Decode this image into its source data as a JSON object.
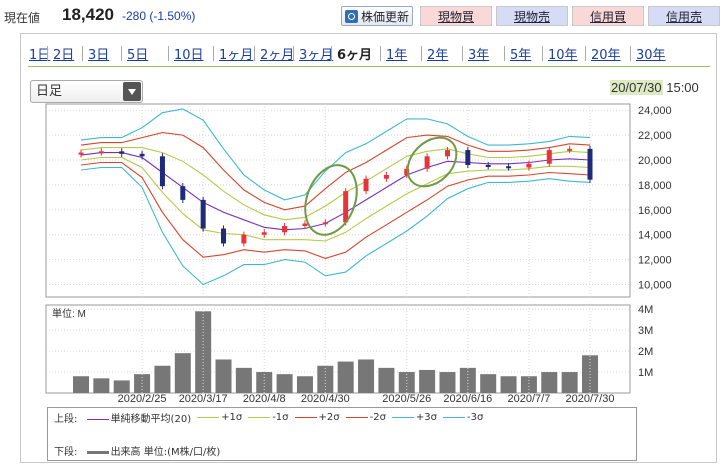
{
  "quote": {
    "price_label": "現在値",
    "price": "18,420",
    "change": "-280 (-1.50%)"
  },
  "toolbar": {
    "refresh": "株価更新",
    "buttons": [
      {
        "label": "現物買",
        "kind": "buy"
      },
      {
        "label": "現物売",
        "kind": "sell"
      },
      {
        "label": "信用買",
        "kind": "buy"
      },
      {
        "label": "信用売",
        "kind": "sell"
      }
    ]
  },
  "periods": {
    "items": [
      "1日",
      "2日",
      "3日",
      "5日",
      "10日",
      "1ヶ月",
      "2ヶ月",
      "3ヶ月",
      "6ヶ月",
      "1年",
      "2年",
      "3年",
      "5年",
      "10年",
      "20年",
      "30年"
    ],
    "active": "6ヶ月"
  },
  "chart_type_select": {
    "value": "日足"
  },
  "timestamp": {
    "date": "20/07/30",
    "time": "15:00"
  },
  "colors": {
    "up": "#e8333a",
    "down": "#1f2a7a",
    "ma": "#7a2fb5",
    "s1": "#b6c94a",
    "s2": "#d9452a",
    "s3": "#3fb8d0",
    "volume": "#777777",
    "annotation": "#6f9a45"
  },
  "chart_data": [
    {
      "type": "line",
      "panel": "price",
      "ylim": [
        9000,
        24500
      ],
      "yticks": [
        "24,000",
        "22,000",
        "20,000",
        "18,000",
        "16,000",
        "14,000",
        "12,000",
        "10,000"
      ],
      "ytick_values": [
        24000,
        22000,
        20000,
        18000,
        16000,
        14000,
        12000,
        10000
      ],
      "xticks": [
        "2020/2/25",
        "2020/3/17",
        "2020/4/8",
        "2020/4/30",
        "2020/5/26",
        "2020/6/16",
        "2020/7/7",
        "2020/7/30"
      ],
      "x": [
        "2/3",
        "2/10",
        "2/17",
        "2/24",
        "3/2",
        "3/9",
        "3/16",
        "3/23",
        "3/30",
        "4/6",
        "4/13",
        "4/20",
        "4/27",
        "5/4",
        "5/11",
        "5/18",
        "5/25",
        "6/1",
        "6/8",
        "6/15",
        "6/22",
        "6/29",
        "7/6",
        "7/13",
        "7/20",
        "7/27"
      ],
      "series": [
        {
          "name": "単純移動平均(20)",
          "values": [
            20400,
            20600,
            20600,
            20200,
            19000,
            17800,
            16600,
            15800,
            15200,
            14600,
            14400,
            14500,
            14900,
            15800,
            16800,
            17800,
            18800,
            19400,
            19900,
            19800,
            19700,
            19700,
            19800,
            20000,
            20100,
            20000
          ]
        },
        {
          "name": "+1σ",
          "values": [
            20800,
            21000,
            21000,
            21000,
            20600,
            19900,
            18800,
            17500,
            16400,
            15600,
            15200,
            15400,
            16300,
            17400,
            18300,
            19300,
            20300,
            20700,
            20900,
            20500,
            20200,
            20200,
            20300,
            20500,
            20700,
            20600
          ]
        },
        {
          "name": "-1σ",
          "values": [
            20000,
            20200,
            20200,
            19400,
            17400,
            15700,
            14400,
            14100,
            14000,
            13600,
            13600,
            13600,
            13500,
            14200,
            15300,
            16300,
            17300,
            18100,
            18900,
            19100,
            19200,
            19200,
            19300,
            19500,
            19500,
            19400
          ]
        },
        {
          "name": "+2σ",
          "values": [
            21200,
            21400,
            21400,
            21800,
            22200,
            22000,
            21000,
            19200,
            17600,
            16600,
            16000,
            16300,
            17700,
            19000,
            19800,
            20800,
            21800,
            22000,
            21900,
            21200,
            20700,
            20700,
            20800,
            21000,
            21300,
            21200
          ]
        },
        {
          "name": "-2σ",
          "values": [
            19600,
            19800,
            19800,
            18600,
            15800,
            13600,
            12200,
            12400,
            12800,
            12600,
            12800,
            12700,
            12100,
            12600,
            13800,
            14800,
            15800,
            16800,
            17900,
            18400,
            18700,
            18700,
            18800,
            19000,
            18900,
            18800
          ]
        },
        {
          "name": "+3σ",
          "values": [
            21600,
            21800,
            21800,
            22600,
            23800,
            24100,
            23200,
            20900,
            18800,
            17600,
            16800,
            17200,
            19100,
            20600,
            21300,
            22300,
            23300,
            23300,
            22900,
            21900,
            21200,
            21200,
            21300,
            21500,
            21900,
            21800
          ]
        },
        {
          "name": "-3σ",
          "values": [
            19200,
            19400,
            19400,
            17800,
            14200,
            11500,
            10000,
            10700,
            11600,
            11600,
            12000,
            11800,
            10700,
            11000,
            12300,
            13300,
            14300,
            15500,
            16900,
            17700,
            18200,
            18200,
            18300,
            18500,
            18300,
            18200
          ]
        },
        {
          "name": "close",
          "values": [
            20600,
            20700,
            20500,
            20300,
            17900,
            16800,
            14500,
            13300,
            14000,
            14200,
            14700,
            14900,
            15000,
            17500,
            18500,
            18800,
            19300,
            20300,
            20800,
            19600,
            19500,
            19400,
            19700,
            20800,
            20900,
            18420
          ]
        }
      ]
    },
    {
      "type": "bar",
      "panel": "volume",
      "ylabel": "単位: M",
      "ylim": [
        0,
        4.2
      ],
      "yticks": [
        "4M",
        "3M",
        "2M",
        "1M"
      ],
      "ytick_values": [
        4,
        3,
        2,
        1
      ],
      "categories": [
        "2/3",
        "2/10",
        "2/17",
        "2/24",
        "3/2",
        "3/9",
        "3/16",
        "3/23",
        "3/30",
        "4/6",
        "4/13",
        "4/20",
        "4/27",
        "5/4",
        "5/11",
        "5/18",
        "5/25",
        "6/1",
        "6/8",
        "6/15",
        "6/22",
        "6/29",
        "7/6",
        "7/13",
        "7/20",
        "7/27"
      ],
      "values": [
        0.8,
        0.7,
        0.6,
        0.9,
        1.3,
        1.9,
        3.9,
        1.6,
        1.2,
        1.0,
        0.9,
        0.8,
        1.3,
        1.5,
        1.6,
        1.2,
        1.0,
        1.1,
        1.0,
        1.2,
        0.9,
        0.8,
        0.8,
        1.0,
        1.0,
        1.8
      ]
    }
  ],
  "legend": {
    "upper_label": "上段:",
    "upper_items": [
      "単純移動平均(20)",
      "+1σ",
      "-1σ",
      "+2σ",
      "-2σ",
      "+3σ",
      "-3σ"
    ],
    "lower_label": "下段:",
    "lower_item": "出来高 単位:(M株/口/枚)"
  }
}
